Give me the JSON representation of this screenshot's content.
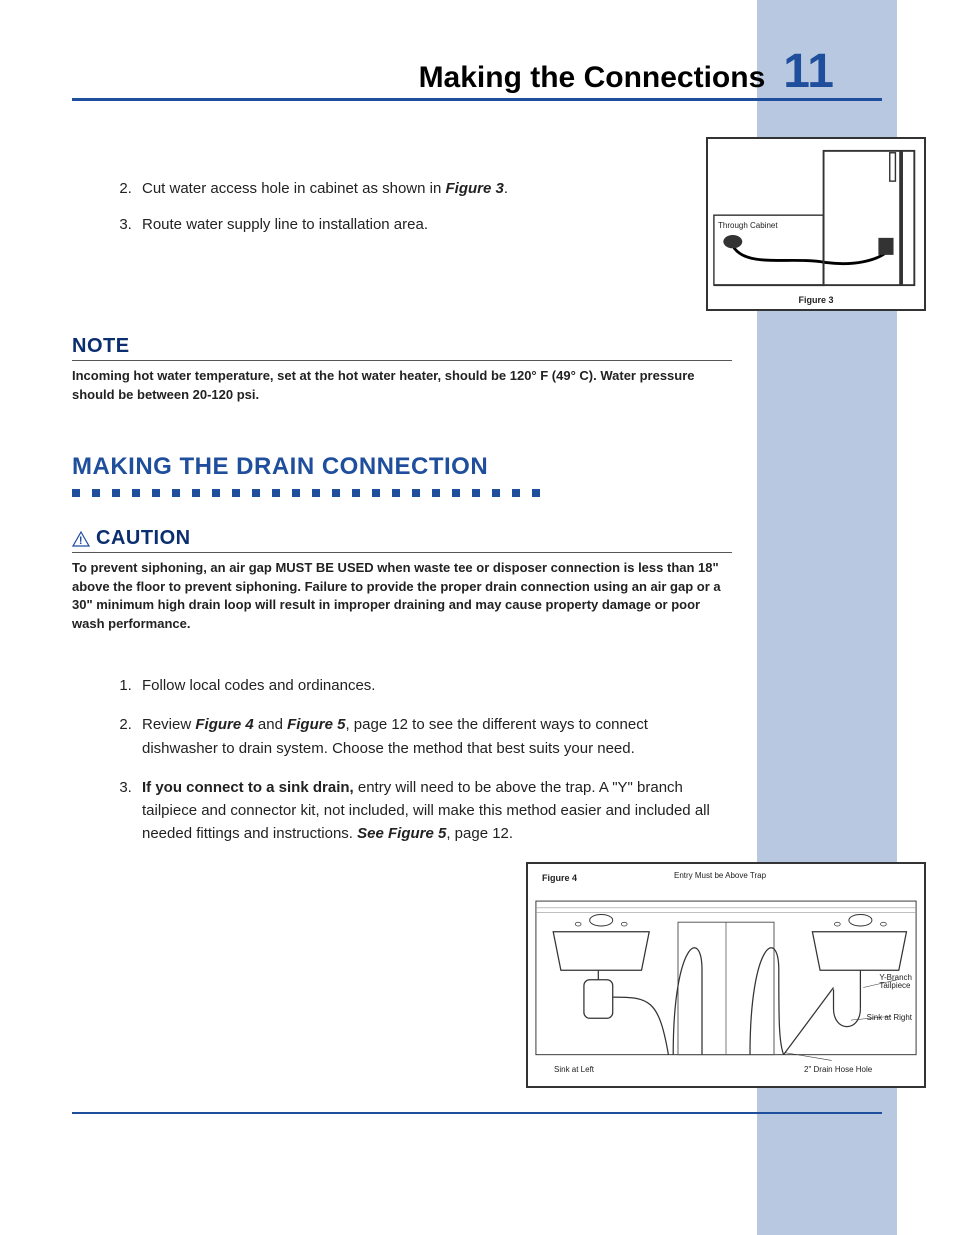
{
  "page": {
    "title": "Making the Connections",
    "number": "11"
  },
  "colors": {
    "accent": "#1f4e9c",
    "dark": "#0b2e6f",
    "sidebar": "#b7c8e0",
    "text": "#222222"
  },
  "top_steps": {
    "start": 2,
    "items": [
      {
        "pre": "Cut water access hole in cabinet as shown in ",
        "figref": "Figure 3",
        "post": "."
      },
      {
        "pre": "Route water supply line to installation area.",
        "figref": "",
        "post": ""
      }
    ]
  },
  "figure3": {
    "label": "Figure 3",
    "cabinet_label": "Through Cabinet"
  },
  "note": {
    "title": "NOTE",
    "body": "Incoming hot water temperature, set at the hot water heater, should be 120° F (49° C).  Water pressure should be between 20-120 psi."
  },
  "section": {
    "title": "MAKING THE DRAIN CONNECTION",
    "dot_count": 24
  },
  "caution": {
    "title": "CAUTION",
    "body": "To prevent siphoning, an air gap MUST BE USED when waste tee or disposer connection is less than 18\" above the floor to prevent siphoning.  Failure to provide the proper drain connection using an air gap or a 30\" minimum high drain loop will result in improper draining and may cause property damage or poor wash performance."
  },
  "drain_steps": [
    {
      "text": "Follow local codes and ordinances."
    },
    {
      "parts": [
        {
          "t": "Review "
        },
        {
          "t": "Figure 4",
          "b": true,
          "i": true
        },
        {
          "t": " and "
        },
        {
          "t": "Figure 5",
          "b": true,
          "i": true
        },
        {
          "t": ", page 12 to see the different ways to connect dishwasher to drain system.  Choose the method that best suits your need."
        }
      ]
    },
    {
      "parts": [
        {
          "t": "If you connect to a sink drain,",
          "b": true
        },
        {
          "t": " entry will need to be above the trap.  A \"Y\" branch tailpiece and connector kit, not included, will make this method easier and included all needed fittings and instructions. "
        },
        {
          "t": "See Figure 5",
          "b": true,
          "i": true
        },
        {
          "t": ", page 12."
        }
      ]
    }
  ],
  "figure4": {
    "label": "Figure 4",
    "labels": {
      "top": "Entry Must be Above Trap",
      "left_sink": "Sink at Left",
      "right_sink": "Sink at Right",
      "ybranch": "Y-Branch\nTailpiece",
      "hose": "2\" Drain Hose Hole"
    }
  }
}
